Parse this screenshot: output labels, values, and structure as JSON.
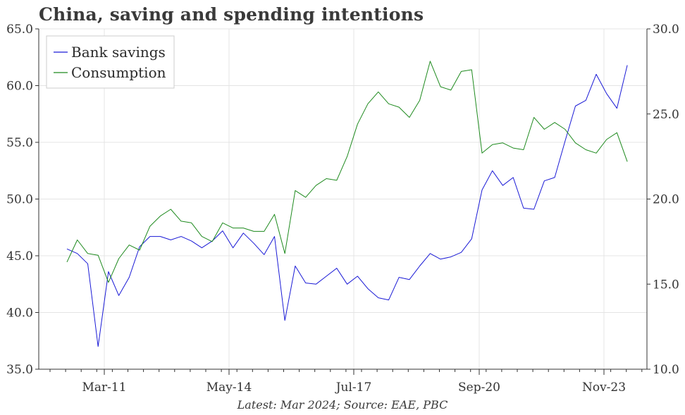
{
  "chart_data": {
    "type": "line",
    "title": "China, saving and spending intentions",
    "footer": "Latest: Mar 2024; Source: EAE, PBC",
    "x_tick_labels": [
      "Mar-11",
      "May-14",
      "Jul-17",
      "Sep-20",
      "Nov-23"
    ],
    "left_axis": {
      "range": [
        35.0,
        65.0
      ],
      "ticks": [
        "35.0",
        "40.0",
        "45.0",
        "50.0",
        "55.0",
        "60.0",
        "65.0"
      ]
    },
    "right_axis": {
      "range": [
        10.0,
        30.0
      ],
      "ticks": [
        "10.0",
        "15.0",
        "20.0",
        "25.0",
        "30.0"
      ]
    },
    "legend": {
      "position": "top-left",
      "entries": [
        "Bank savings",
        "Consumption"
      ]
    },
    "grid": true,
    "series": [
      {
        "name": "Bank savings",
        "axis": "left",
        "color": "#1a1ad6",
        "x": [
          0.0,
          0.25,
          0.5,
          0.75,
          1.0,
          1.25,
          1.5,
          1.75,
          2.0,
          2.25,
          2.5,
          2.75,
          3.0,
          3.25,
          3.5,
          3.75,
          4.0,
          4.25,
          4.5,
          4.75,
          5.0,
          5.25,
          5.5,
          5.75,
          6.0,
          6.25,
          6.5,
          6.75,
          7.0,
          7.25,
          7.5,
          7.75,
          8.0,
          8.25,
          8.5,
          8.75,
          9.0,
          9.25,
          9.5,
          9.75,
          10.0,
          10.25,
          10.5,
          10.75,
          11.0,
          11.25,
          11.5,
          11.75,
          12.0,
          12.25,
          12.5,
          12.75,
          13.0,
          13.25,
          13.5
        ],
        "values": [
          45.6,
          45.2,
          44.3,
          37.0,
          43.6,
          41.5,
          43.1,
          45.8,
          46.7,
          46.7,
          46.4,
          46.7,
          46.3,
          45.7,
          46.3,
          47.2,
          45.7,
          47.0,
          46.1,
          45.1,
          46.7,
          39.3,
          44.1,
          42.6,
          42.5,
          43.2,
          43.9,
          42.5,
          43.2,
          42.1,
          41.3,
          41.1,
          43.1,
          42.9,
          44.1,
          45.2,
          44.7,
          44.9,
          45.3,
          46.5,
          50.8,
          52.5,
          51.2,
          51.9,
          49.2,
          49.1,
          51.6,
          51.9,
          55.1,
          58.2,
          58.7,
          61.0,
          59.3,
          58.0,
          61.8
        ]
      },
      {
        "name": "Consumption",
        "axis": "right",
        "color": "#1e8a1e",
        "x": [
          0.0,
          0.25,
          0.5,
          0.75,
          1.0,
          1.25,
          1.5,
          1.75,
          2.0,
          2.25,
          2.5,
          2.75,
          3.0,
          3.25,
          3.5,
          3.75,
          4.0,
          4.25,
          4.5,
          4.75,
          5.0,
          5.25,
          5.5,
          5.75,
          6.0,
          6.25,
          6.5,
          6.75,
          7.0,
          7.25,
          7.5,
          7.75,
          8.0,
          8.25,
          8.5,
          8.75,
          9.0,
          9.25,
          9.5,
          9.75,
          10.0,
          10.25,
          10.5,
          10.75,
          11.0,
          11.25,
          11.5,
          11.75,
          12.0,
          12.25,
          12.5,
          12.75,
          13.0,
          13.25,
          13.5
        ],
        "values": [
          16.3,
          17.6,
          16.8,
          16.7,
          15.1,
          16.5,
          17.3,
          17.0,
          18.4,
          19.0,
          19.4,
          18.7,
          18.6,
          17.8,
          17.5,
          18.6,
          18.3,
          18.3,
          18.1,
          18.1,
          19.1,
          16.8,
          20.5,
          20.1,
          20.8,
          21.2,
          21.1,
          22.5,
          24.4,
          25.6,
          26.3,
          25.6,
          25.4,
          24.8,
          25.8,
          28.1,
          26.6,
          26.4,
          27.5,
          27.6,
          22.7,
          23.2,
          23.3,
          23.0,
          22.9,
          24.8,
          24.1,
          24.5,
          24.1,
          23.3,
          22.9,
          22.7,
          23.5,
          23.9,
          22.2
        ]
      }
    ]
  }
}
